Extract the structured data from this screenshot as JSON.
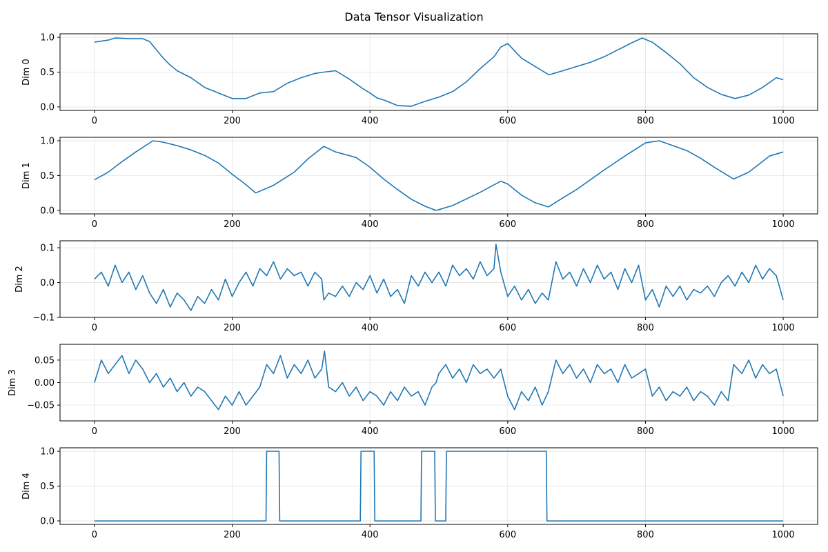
{
  "chart_data": {
    "title": "Data Tensor Visualization",
    "type": "line",
    "panels": [
      {
        "type": "line",
        "ylabel": "Dim 0",
        "xlim": [
          -50,
          1050
        ],
        "ylim": [
          -0.05,
          1.05
        ],
        "xticks": [
          0,
          200,
          400,
          600,
          800,
          1000
        ],
        "xtick_labels": [
          "0",
          "200",
          "400",
          "600",
          "800",
          "1000"
        ],
        "yticks": [
          0.0,
          0.5,
          1.0
        ],
        "ytick_labels": [
          "0.0",
          "0.5",
          "1.0"
        ],
        "grid": true,
        "series": [
          {
            "color": "#1f77b4",
            "x": [
              0,
              20,
              30,
              50,
              70,
              80,
              90,
              100,
              110,
              120,
              140,
              160,
              180,
              200,
              220,
              240,
              260,
              280,
              300,
              320,
              333,
              350,
              370,
              390,
              400,
              410,
              420,
              440,
              460,
              480,
              500,
              520,
              540,
              560,
              580,
              590,
              600,
              620,
              640,
              660,
              680,
              700,
              720,
              740,
              760,
              780,
              795,
              810,
              830,
              850,
              870,
              890,
              910,
              930,
              950,
              970,
              990,
              1000
            ],
            "values": [
              0.93,
              0.96,
              0.99,
              0.98,
              0.98,
              0.94,
              0.82,
              0.7,
              0.6,
              0.52,
              0.42,
              0.28,
              0.2,
              0.12,
              0.12,
              0.2,
              0.22,
              0.34,
              0.42,
              0.48,
              0.5,
              0.52,
              0.4,
              0.26,
              0.2,
              0.13,
              0.1,
              0.02,
              0.01,
              0.08,
              0.14,
              0.22,
              0.36,
              0.55,
              0.72,
              0.86,
              0.91,
              0.7,
              0.58,
              0.46,
              0.52,
              0.58,
              0.64,
              0.72,
              0.82,
              0.92,
              0.99,
              0.93,
              0.78,
              0.62,
              0.42,
              0.28,
              0.18,
              0.12,
              0.17,
              0.28,
              0.42,
              0.39
            ]
          }
        ]
      },
      {
        "type": "line",
        "ylabel": "Dim 1",
        "xlim": [
          -50,
          1050
        ],
        "ylim": [
          -0.05,
          1.05
        ],
        "xticks": [
          0,
          200,
          400,
          600,
          800,
          1000
        ],
        "xtick_labels": [
          "0",
          "200",
          "400",
          "600",
          "800",
          "1000"
        ],
        "yticks": [
          0.0,
          0.5,
          1.0
        ],
        "ytick_labels": [
          "0.0",
          "0.5",
          "1.0"
        ],
        "grid": true,
        "series": [
          {
            "color": "#1f77b4",
            "x": [
              0,
              20,
              40,
              60,
              85,
              100,
              120,
              140,
              160,
              180,
              200,
              220,
              234,
              260,
              290,
              310,
              333,
              350,
              380,
              400,
              420,
              440,
              460,
              480,
              496,
              520,
              560,
              590,
              600,
              620,
              640,
              659,
              680,
              700,
              740,
              770,
              800,
              820,
              840,
              860,
              880,
              900,
              928,
              950,
              980,
              1000
            ],
            "values": [
              0.44,
              0.55,
              0.7,
              0.84,
              1.0,
              0.98,
              0.93,
              0.87,
              0.79,
              0.68,
              0.52,
              0.37,
              0.25,
              0.36,
              0.55,
              0.74,
              0.92,
              0.84,
              0.76,
              0.62,
              0.45,
              0.3,
              0.16,
              0.06,
              0.0,
              0.07,
              0.26,
              0.42,
              0.38,
              0.22,
              0.11,
              0.05,
              0.18,
              0.3,
              0.58,
              0.78,
              0.97,
              1.0,
              0.93,
              0.86,
              0.75,
              0.62,
              0.45,
              0.55,
              0.78,
              0.84
            ]
          }
        ]
      },
      {
        "type": "line",
        "ylabel": "Dim 2",
        "xlim": [
          -50,
          1050
        ],
        "ylim": [
          -0.1,
          0.12
        ],
        "xticks": [
          0,
          200,
          400,
          600,
          800,
          1000
        ],
        "xtick_labels": [
          "0",
          "200",
          "400",
          "600",
          "800",
          "1000"
        ],
        "yticks": [
          -0.1,
          0.0,
          0.1
        ],
        "ytick_labels": [
          "−0.1",
          "0.0",
          "0.1"
        ],
        "grid": true,
        "series": [
          {
            "color": "#1f77b4",
            "x": [
              0,
              10,
              20,
              30,
              40,
              50,
              60,
              70,
              80,
              90,
              100,
              110,
              120,
              130,
              140,
              150,
              160,
              170,
              180,
              190,
              200,
              210,
              220,
              230,
              240,
              250,
              260,
              270,
              280,
              290,
              300,
              310,
              320,
              330,
              333,
              340,
              350,
              360,
              370,
              380,
              390,
              400,
              410,
              420,
              430,
              440,
              450,
              460,
              470,
              480,
              490,
              500,
              510,
              520,
              530,
              540,
              550,
              560,
              570,
              580,
              583,
              590,
              600,
              610,
              620,
              630,
              640,
              650,
              659,
              670,
              680,
              690,
              700,
              710,
              720,
              730,
              740,
              750,
              760,
              770,
              780,
              790,
              800,
              810,
              820,
              830,
              840,
              850,
              860,
              870,
              880,
              890,
              900,
              910,
              920,
              930,
              940,
              950,
              960,
              970,
              980,
              990,
              1000
            ],
            "values": [
              0.01,
              0.03,
              -0.01,
              0.05,
              0.0,
              0.03,
              -0.02,
              0.02,
              -0.03,
              -0.06,
              -0.02,
              -0.07,
              -0.03,
              -0.05,
              -0.08,
              -0.04,
              -0.06,
              -0.02,
              -0.05,
              0.01,
              -0.04,
              0.0,
              0.03,
              -0.01,
              0.04,
              0.02,
              0.06,
              0.01,
              0.04,
              0.02,
              0.03,
              -0.01,
              0.03,
              0.01,
              -0.05,
              -0.03,
              -0.04,
              -0.01,
              -0.04,
              0.0,
              -0.02,
              0.02,
              -0.03,
              0.01,
              -0.04,
              -0.02,
              -0.06,
              0.02,
              -0.01,
              0.03,
              0.0,
              0.03,
              -0.01,
              0.05,
              0.02,
              0.04,
              0.01,
              0.06,
              0.02,
              0.04,
              0.11,
              0.03,
              -0.04,
              -0.01,
              -0.05,
              -0.02,
              -0.06,
              -0.03,
              -0.05,
              0.06,
              0.01,
              0.03,
              -0.01,
              0.04,
              0.0,
              0.05,
              0.01,
              0.03,
              -0.02,
              0.04,
              0.0,
              0.05,
              -0.05,
              -0.02,
              -0.07,
              -0.01,
              -0.04,
              -0.01,
              -0.05,
              -0.02,
              -0.03,
              -0.01,
              -0.04,
              0.0,
              0.02,
              -0.01,
              0.03,
              0.0,
              0.05,
              0.01,
              0.04,
              0.02,
              -0.05
            ]
          }
        ]
      },
      {
        "type": "line",
        "ylabel": "Dim 3",
        "xlim": [
          -50,
          1050
        ],
        "ylim": [
          -0.085,
          0.085
        ],
        "xticks": [
          0,
          200,
          400,
          600,
          800,
          1000
        ],
        "xtick_labels": [
          "0",
          "200",
          "400",
          "600",
          "800",
          "1000"
        ],
        "yticks": [
          -0.05,
          0.0,
          0.05
        ],
        "ytick_labels": [
          "−0.05",
          "0.00",
          "0.05"
        ],
        "grid": true,
        "series": [
          {
            "color": "#1f77b4",
            "x": [
              0,
              10,
              20,
              30,
              40,
              50,
              60,
              70,
              80,
              90,
              100,
              110,
              120,
              130,
              140,
              150,
              160,
              170,
              180,
              190,
              200,
              210,
              220,
              230,
              240,
              250,
              260,
              270,
              280,
              290,
              300,
              310,
              320,
              330,
              334,
              340,
              350,
              360,
              370,
              380,
              390,
              400,
              410,
              420,
              430,
              440,
              450,
              460,
              470,
              480,
              490,
              496,
              500,
              510,
              520,
              530,
              540,
              550,
              560,
              570,
              580,
              590,
              600,
              610,
              620,
              630,
              640,
              650,
              659,
              670,
              680,
              690,
              700,
              710,
              720,
              730,
              740,
              750,
              760,
              770,
              780,
              790,
              800,
              810,
              820,
              830,
              840,
              850,
              860,
              870,
              880,
              890,
              900,
              910,
              920,
              928,
              940,
              950,
              960,
              970,
              980,
              990,
              1000
            ],
            "values": [
              0.0,
              0.05,
              0.02,
              0.04,
              0.06,
              0.02,
              0.05,
              0.03,
              0.0,
              0.02,
              -0.01,
              0.01,
              -0.02,
              0.0,
              -0.03,
              -0.01,
              -0.02,
              -0.04,
              -0.06,
              -0.03,
              -0.05,
              -0.02,
              -0.05,
              -0.03,
              -0.01,
              0.04,
              0.02,
              0.06,
              0.01,
              0.04,
              0.02,
              0.05,
              0.01,
              0.03,
              0.07,
              -0.01,
              -0.02,
              0.0,
              -0.03,
              -0.01,
              -0.04,
              -0.02,
              -0.03,
              -0.05,
              -0.02,
              -0.04,
              -0.01,
              -0.03,
              -0.02,
              -0.05,
              -0.01,
              0.0,
              0.02,
              0.04,
              0.01,
              0.03,
              0.0,
              0.04,
              0.02,
              0.03,
              0.01,
              0.03,
              -0.03,
              -0.06,
              -0.02,
              -0.04,
              -0.01,
              -0.05,
              -0.02,
              0.05,
              0.02,
              0.04,
              0.01,
              0.03,
              0.0,
              0.04,
              0.02,
              0.03,
              0.0,
              0.04,
              0.01,
              0.02,
              0.03,
              -0.03,
              -0.01,
              -0.04,
              -0.02,
              -0.03,
              -0.01,
              -0.04,
              -0.02,
              -0.03,
              -0.05,
              -0.02,
              -0.04,
              0.04,
              0.02,
              0.05,
              0.01,
              0.04,
              0.02,
              0.03,
              -0.03
            ]
          }
        ]
      },
      {
        "type": "line",
        "ylabel": "Dim 4",
        "xlim": [
          -50,
          1050
        ],
        "ylim": [
          -0.05,
          1.05
        ],
        "xticks": [
          0,
          200,
          400,
          600,
          800,
          1000
        ],
        "xtick_labels": [
          "0",
          "200",
          "400",
          "600",
          "800",
          "1000"
        ],
        "yticks": [
          0.0,
          0.5,
          1.0
        ],
        "ytick_labels": [
          "0.0",
          "0.5",
          "1.0"
        ],
        "grid": true,
        "series": [
          {
            "color": "#1f77b4",
            "x": [
              0,
              249,
              250,
              268,
              269,
              386,
              387,
              406,
              407,
              474,
              475,
              494,
              495,
              510,
              511,
              656,
              657,
              1000
            ],
            "values": [
              0,
              0,
              1,
              1,
              0,
              0,
              1,
              1,
              0,
              0,
              1,
              1,
              0,
              0,
              1,
              1,
              0,
              0
            ]
          }
        ]
      }
    ]
  }
}
